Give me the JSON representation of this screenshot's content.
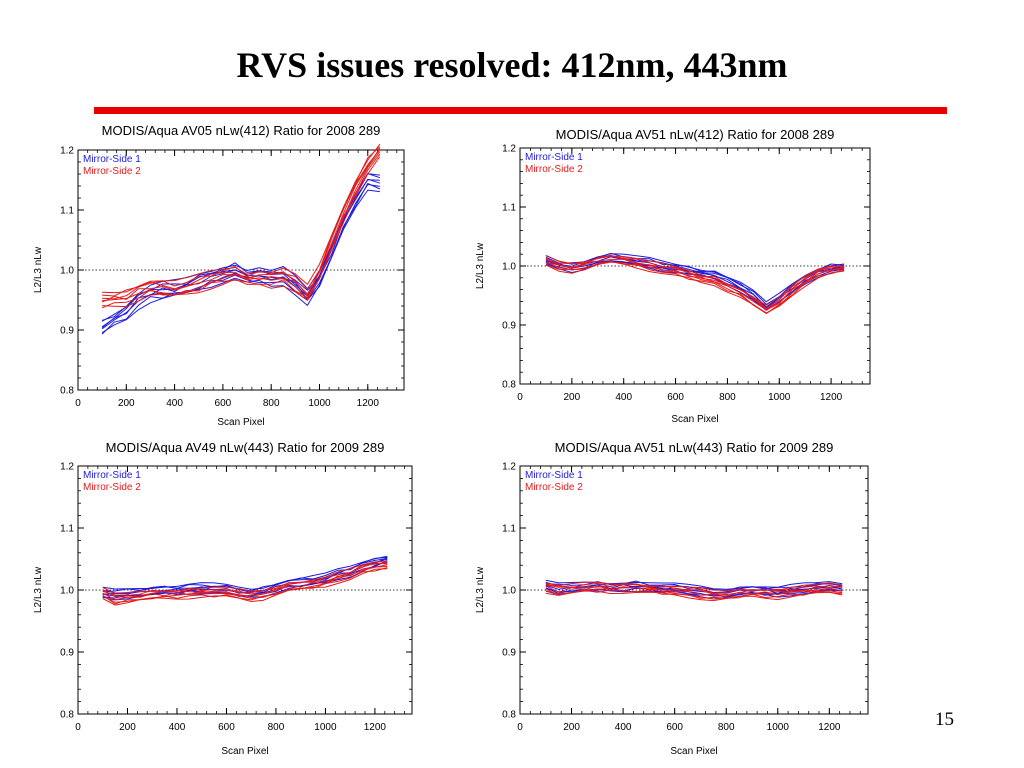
{
  "slide": {
    "title": "RVS issues resolved: 412nm, 443nm",
    "page_number": "15",
    "rule_color": "#e60000"
  },
  "colors": {
    "mirror_side_1": "#1c1cdc",
    "mirror_side_2": "#e61a1a"
  },
  "chart_data": [
    {
      "type": "line",
      "title": "MODIS/Aqua AV05 nLw(412) Ratio for 2008 289",
      "xlabel": "Scan Pixel",
      "ylabel": "L2/L3 nLw",
      "xlim": [
        0,
        1350
      ],
      "ylim": [
        0.8,
        1.2
      ],
      "xticks": [
        0,
        200,
        400,
        600,
        800,
        1000,
        1200
      ],
      "yticks": [
        0.8,
        0.9,
        1.0,
        1.1,
        1.2
      ],
      "ytick_labels": [
        "0.8",
        "0.9",
        "1.0",
        "1.1",
        "1.2"
      ],
      "reference_line": 1.0,
      "legend": [
        "Mirror-Side 1",
        "Mirror-Side 2"
      ],
      "legend_position": "top-left",
      "series": [
        {
          "name": "Mirror-Side 1",
          "x": [
            100,
            150,
            200,
            250,
            300,
            350,
            400,
            450,
            500,
            550,
            600,
            650,
            700,
            750,
            800,
            850,
            900,
            950,
            1000,
            1050,
            1100,
            1150,
            1200,
            1250
          ],
          "y": [
            0.905,
            0.918,
            0.93,
            0.95,
            0.962,
            0.966,
            0.968,
            0.972,
            0.98,
            0.987,
            0.995,
            1.0,
            0.99,
            0.992,
            0.985,
            0.99,
            0.975,
            0.955,
            0.985,
            1.03,
            1.08,
            1.12,
            1.15,
            1.145
          ]
        },
        {
          "name": "Mirror-Side 2",
          "x": [
            100,
            150,
            200,
            250,
            300,
            350,
            400,
            450,
            500,
            550,
            600,
            650,
            700,
            750,
            800,
            850,
            900,
            950,
            1000,
            1050,
            1100,
            1150,
            1200,
            1250
          ],
          "y": [
            0.95,
            0.952,
            0.955,
            0.965,
            0.972,
            0.97,
            0.968,
            0.972,
            0.978,
            0.985,
            0.99,
            0.995,
            0.985,
            0.988,
            0.985,
            0.99,
            0.978,
            0.96,
            0.995,
            1.045,
            1.095,
            1.14,
            1.175,
            1.2
          ]
        }
      ]
    },
    {
      "type": "line",
      "title": "MODIS/Aqua AV51 nLw(412) Ratio for 2008 289",
      "xlabel": "Scan Pixel",
      "ylabel": "L2/L3 nLw",
      "xlim": [
        0,
        1350
      ],
      "ylim": [
        0.8,
        1.2
      ],
      "xticks": [
        0,
        200,
        400,
        600,
        800,
        1000,
        1200
      ],
      "yticks": [
        0.8,
        0.9,
        1.0,
        1.1,
        1.2
      ],
      "ytick_labels": [
        "0.8",
        "0.9",
        "1.0",
        "1.1",
        "1.2"
      ],
      "reference_line": 1.0,
      "legend": [
        "Mirror-Side 1",
        "Mirror-Side 2"
      ],
      "legend_position": "top-left",
      "series": [
        {
          "name": "Mirror-Side 1",
          "x": [
            100,
            150,
            200,
            250,
            300,
            350,
            400,
            450,
            500,
            550,
            600,
            650,
            700,
            750,
            800,
            850,
            900,
            950,
            1000,
            1050,
            1100,
            1150,
            1200,
            1250
          ],
          "y": [
            1.01,
            1.002,
            0.998,
            1.003,
            1.01,
            1.014,
            1.012,
            1.008,
            1.005,
            1.0,
            0.996,
            0.993,
            0.988,
            0.985,
            0.975,
            0.965,
            0.95,
            0.93,
            0.945,
            0.962,
            0.978,
            0.99,
            0.996,
            0.998
          ]
        },
        {
          "name": "Mirror-Side 2",
          "x": [
            100,
            150,
            200,
            250,
            300,
            350,
            400,
            450,
            500,
            550,
            600,
            650,
            700,
            750,
            800,
            850,
            900,
            950,
            1000,
            1050,
            1100,
            1150,
            1200,
            1250
          ],
          "y": [
            1.008,
            1.0,
            0.997,
            1.002,
            1.008,
            1.012,
            1.01,
            1.005,
            1.0,
            0.995,
            0.99,
            0.985,
            0.978,
            0.975,
            0.965,
            0.955,
            0.94,
            0.925,
            0.938,
            0.958,
            0.975,
            0.988,
            0.994,
            0.996
          ]
        }
      ]
    },
    {
      "type": "line",
      "title": "MODIS/Aqua AV49 nLw(443) Ratio for 2009 289",
      "xlabel": "Scan Pixel",
      "ylabel": "L2/L3 nLw",
      "xlim": [
        0,
        1350
      ],
      "ylim": [
        0.8,
        1.2
      ],
      "xticks": [
        0,
        200,
        400,
        600,
        800,
        1000,
        1200
      ],
      "yticks": [
        0.8,
        0.9,
        1.0,
        1.1,
        1.2
      ],
      "ytick_labels": [
        "0.8",
        "0.9",
        "1.0",
        "1.1",
        "1.2"
      ],
      "reference_line": 1.0,
      "legend": [
        "Mirror-Side 1",
        "Mirror-Side 2"
      ],
      "legend_position": "top-left",
      "series": [
        {
          "name": "Mirror-Side 1",
          "x": [
            100,
            150,
            200,
            250,
            300,
            350,
            400,
            450,
            500,
            550,
            600,
            650,
            700,
            750,
            800,
            850,
            900,
            950,
            1000,
            1050,
            1100,
            1150,
            1200,
            1250
          ],
          "y": [
            0.995,
            0.993,
            0.995,
            0.997,
            0.998,
            1.0,
            1.0,
            1.002,
            1.003,
            1.002,
            1.0,
            0.997,
            0.995,
            0.998,
            1.005,
            1.01,
            1.012,
            1.015,
            1.018,
            1.025,
            1.03,
            1.038,
            1.045,
            1.05
          ]
        },
        {
          "name": "Mirror-Side 2",
          "x": [
            100,
            150,
            200,
            250,
            300,
            350,
            400,
            450,
            500,
            550,
            600,
            650,
            700,
            750,
            800,
            850,
            900,
            950,
            1000,
            1050,
            1100,
            1150,
            1200,
            1250
          ],
          "y": [
            0.995,
            0.985,
            0.987,
            0.99,
            0.992,
            0.993,
            0.994,
            0.995,
            0.996,
            0.996,
            0.995,
            0.993,
            0.99,
            0.993,
            1.0,
            1.005,
            1.007,
            1.01,
            1.013,
            1.02,
            1.025,
            1.032,
            1.038,
            1.04
          ]
        }
      ]
    },
    {
      "type": "line",
      "title": "MODIS/Aqua AV51 nLw(443) Ratio for 2009 289",
      "xlabel": "Scan Pixel",
      "ylabel": "L2/L3 nLw",
      "xlim": [
        0,
        1350
      ],
      "ylim": [
        0.8,
        1.2
      ],
      "xticks": [
        0,
        200,
        400,
        600,
        800,
        1000,
        1200
      ],
      "yticks": [
        0.8,
        0.9,
        1.0,
        1.1,
        1.2
      ],
      "ytick_labels": [
        "0.8",
        "0.9",
        "1.0",
        "1.1",
        "1.2"
      ],
      "reference_line": 1.0,
      "legend": [
        "Mirror-Side 1",
        "Mirror-Side 2"
      ],
      "legend_position": "top-left",
      "series": [
        {
          "name": "Mirror-Side 1",
          "x": [
            100,
            150,
            200,
            250,
            300,
            350,
            400,
            450,
            500,
            550,
            600,
            650,
            700,
            750,
            800,
            850,
            900,
            950,
            1000,
            1050,
            1100,
            1150,
            1200,
            1250
          ],
          "y": [
            1.007,
            1.002,
            1.003,
            1.005,
            1.006,
            1.005,
            1.006,
            1.007,
            1.005,
            1.003,
            1.002,
            1.0,
            0.998,
            0.995,
            0.996,
            0.998,
            1.0,
            0.999,
            0.997,
            1.0,
            1.002,
            1.003,
            1.006,
            1.004
          ]
        },
        {
          "name": "Mirror-Side 2",
          "x": [
            100,
            150,
            200,
            250,
            300,
            350,
            400,
            450,
            500,
            550,
            600,
            650,
            700,
            750,
            800,
            850,
            900,
            950,
            1000,
            1050,
            1100,
            1150,
            1200,
            1250
          ],
          "y": [
            1.004,
            0.999,
            1.001,
            1.003,
            1.004,
            1.003,
            1.004,
            1.004,
            1.002,
            1.0,
            0.998,
            0.996,
            0.994,
            0.991,
            0.992,
            0.994,
            0.996,
            0.995,
            0.994,
            0.997,
            0.999,
            1.0,
            1.002,
            1.0
          ]
        }
      ]
    }
  ]
}
